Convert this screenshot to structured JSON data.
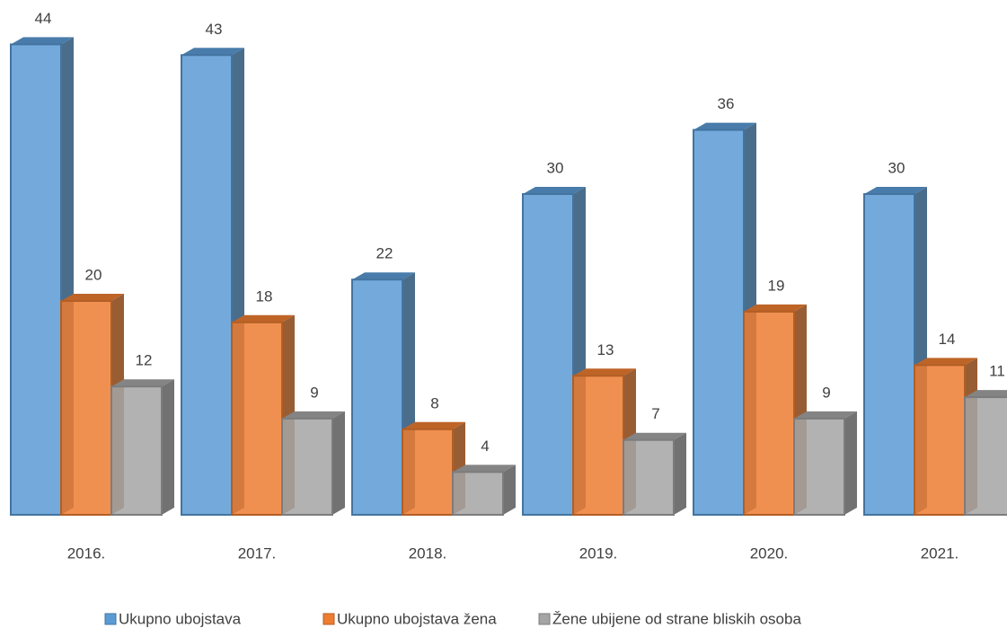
{
  "chart_data": {
    "type": "bar3d",
    "categories": [
      "2016.",
      "2017.",
      "2018.",
      "2019.",
      "2020.",
      "2021."
    ],
    "series": [
      {
        "name": "Ukupno ubojstava",
        "color": "#5b9bd5",
        "values": [
          44,
          43,
          22,
          30,
          36,
          30
        ]
      },
      {
        "name": "Ukupno ubojstava žena",
        "color": "#ed7d31",
        "values": [
          20,
          18,
          8,
          13,
          19,
          14
        ]
      },
      {
        "name": "Žene ubijene od strane bliskih osoba",
        "color": "#a5a5a5",
        "values": [
          12,
          9,
          4,
          7,
          9,
          11
        ]
      }
    ]
  }
}
